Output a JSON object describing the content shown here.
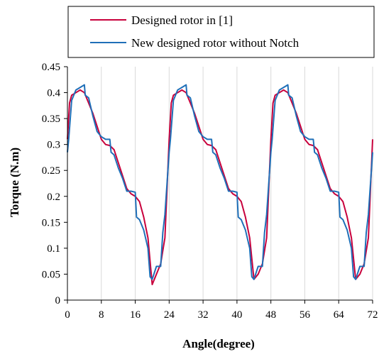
{
  "chart_data": {
    "type": "line",
    "title": "",
    "xlabel": "Angle(degree)",
    "ylabel": "Torque (N.m)",
    "xlim": [
      0,
      72
    ],
    "ylim": [
      0,
      0.45
    ],
    "x_ticks": [
      "0",
      "8",
      "16",
      "24",
      "32",
      "40",
      "48",
      "56",
      "64",
      "72"
    ],
    "y_ticks": [
      "0",
      "0.05",
      "0.1",
      "0.15",
      "0.2",
      "0.25",
      "0.3",
      "0.35",
      "0.4",
      "0.45"
    ],
    "grid": "vertical",
    "legend_position": "top",
    "series": [
      {
        "name": "Designed rotor in [1]",
        "color": "#C8003C",
        "points": [
          [
            0.0,
            0.31
          ],
          [
            0.5,
            0.38
          ],
          [
            1.0,
            0.395
          ],
          [
            2.0,
            0.4
          ],
          [
            3.0,
            0.405
          ],
          [
            4.0,
            0.4
          ],
          [
            5.0,
            0.38
          ],
          [
            6.0,
            0.36
          ],
          [
            7.0,
            0.335
          ],
          [
            8.0,
            0.31
          ],
          [
            9.0,
            0.3
          ],
          [
            10.0,
            0.298
          ],
          [
            11.0,
            0.29
          ],
          [
            12.0,
            0.265
          ],
          [
            13.0,
            0.24
          ],
          [
            14.0,
            0.215
          ],
          [
            15.0,
            0.205
          ],
          [
            16.0,
            0.2
          ],
          [
            17.0,
            0.19
          ],
          [
            18.0,
            0.16
          ],
          [
            19.0,
            0.12
          ],
          [
            20.0,
            0.03
          ],
          [
            21.0,
            0.05
          ],
          [
            22.0,
            0.07
          ],
          [
            23.0,
            0.12
          ],
          [
            24.0,
            0.31
          ],
          [
            24.5,
            0.38
          ],
          [
            25.0,
            0.395
          ],
          [
            26.0,
            0.4
          ],
          [
            27.0,
            0.405
          ],
          [
            28.0,
            0.4
          ],
          [
            29.0,
            0.38
          ],
          [
            30.0,
            0.36
          ],
          [
            31.0,
            0.335
          ],
          [
            32.0,
            0.31
          ],
          [
            33.0,
            0.3
          ],
          [
            34.0,
            0.298
          ],
          [
            35.0,
            0.29
          ],
          [
            36.0,
            0.265
          ],
          [
            37.0,
            0.24
          ],
          [
            38.0,
            0.215
          ],
          [
            39.0,
            0.205
          ],
          [
            40.0,
            0.2
          ],
          [
            41.0,
            0.19
          ],
          [
            42.0,
            0.16
          ],
          [
            43.0,
            0.12
          ],
          [
            44.0,
            0.04
          ],
          [
            45.0,
            0.05
          ],
          [
            46.0,
            0.07
          ],
          [
            47.0,
            0.12
          ],
          [
            48.0,
            0.31
          ],
          [
            48.5,
            0.38
          ],
          [
            49.0,
            0.395
          ],
          [
            50.0,
            0.4
          ],
          [
            51.0,
            0.405
          ],
          [
            52.0,
            0.4
          ],
          [
            53.0,
            0.38
          ],
          [
            54.0,
            0.36
          ],
          [
            55.0,
            0.335
          ],
          [
            56.0,
            0.31
          ],
          [
            57.0,
            0.3
          ],
          [
            58.0,
            0.298
          ],
          [
            59.0,
            0.29
          ],
          [
            60.0,
            0.265
          ],
          [
            61.0,
            0.24
          ],
          [
            62.0,
            0.215
          ],
          [
            63.0,
            0.205
          ],
          [
            64.0,
            0.2
          ],
          [
            65.0,
            0.19
          ],
          [
            66.0,
            0.16
          ],
          [
            67.0,
            0.12
          ],
          [
            68.0,
            0.04
          ],
          [
            69.0,
            0.05
          ],
          [
            70.0,
            0.07
          ],
          [
            71.0,
            0.12
          ],
          [
            72.0,
            0.31
          ]
        ]
      },
      {
        "name": "New designed rotor without Notch",
        "color": "#1F6FB8",
        "points": [
          [
            0.0,
            0.285
          ],
          [
            0.3,
            0.31
          ],
          [
            1.0,
            0.385
          ],
          [
            2.0,
            0.405
          ],
          [
            3.0,
            0.41
          ],
          [
            4.0,
            0.415
          ],
          [
            4.2,
            0.395
          ],
          [
            5.0,
            0.39
          ],
          [
            6.0,
            0.355
          ],
          [
            7.0,
            0.325
          ],
          [
            8.0,
            0.315
          ],
          [
            9.0,
            0.31
          ],
          [
            10.0,
            0.31
          ],
          [
            10.3,
            0.285
          ],
          [
            11.0,
            0.28
          ],
          [
            12.0,
            0.255
          ],
          [
            13.0,
            0.235
          ],
          [
            14.0,
            0.21
          ],
          [
            15.0,
            0.21
          ],
          [
            16.0,
            0.208
          ],
          [
            16.3,
            0.16
          ],
          [
            17.0,
            0.155
          ],
          [
            18.0,
            0.135
          ],
          [
            19.0,
            0.1
          ],
          [
            19.5,
            0.045
          ],
          [
            20.0,
            0.04
          ],
          [
            21.0,
            0.065
          ],
          [
            22.0,
            0.065
          ],
          [
            22.5,
            0.13
          ],
          [
            23.0,
            0.165
          ],
          [
            24.0,
            0.285
          ],
          [
            24.3,
            0.31
          ],
          [
            25.0,
            0.385
          ],
          [
            26.0,
            0.405
          ],
          [
            27.0,
            0.41
          ],
          [
            28.0,
            0.415
          ],
          [
            28.2,
            0.395
          ],
          [
            29.0,
            0.39
          ],
          [
            30.0,
            0.355
          ],
          [
            31.0,
            0.325
          ],
          [
            32.0,
            0.315
          ],
          [
            33.0,
            0.31
          ],
          [
            34.0,
            0.31
          ],
          [
            34.3,
            0.285
          ],
          [
            35.0,
            0.28
          ],
          [
            36.0,
            0.255
          ],
          [
            37.0,
            0.235
          ],
          [
            38.0,
            0.21
          ],
          [
            39.0,
            0.21
          ],
          [
            40.0,
            0.208
          ],
          [
            40.3,
            0.16
          ],
          [
            41.0,
            0.155
          ],
          [
            42.0,
            0.135
          ],
          [
            43.0,
            0.1
          ],
          [
            43.5,
            0.045
          ],
          [
            44.0,
            0.04
          ],
          [
            45.0,
            0.065
          ],
          [
            46.0,
            0.065
          ],
          [
            46.5,
            0.13
          ],
          [
            47.0,
            0.165
          ],
          [
            48.0,
            0.285
          ],
          [
            48.3,
            0.31
          ],
          [
            49.0,
            0.385
          ],
          [
            50.0,
            0.405
          ],
          [
            51.0,
            0.41
          ],
          [
            52.0,
            0.415
          ],
          [
            52.2,
            0.395
          ],
          [
            53.0,
            0.39
          ],
          [
            54.0,
            0.355
          ],
          [
            55.0,
            0.325
          ],
          [
            56.0,
            0.315
          ],
          [
            57.0,
            0.31
          ],
          [
            58.0,
            0.31
          ],
          [
            58.3,
            0.285
          ],
          [
            59.0,
            0.28
          ],
          [
            60.0,
            0.255
          ],
          [
            61.0,
            0.235
          ],
          [
            62.0,
            0.21
          ],
          [
            63.0,
            0.21
          ],
          [
            64.0,
            0.208
          ],
          [
            64.3,
            0.16
          ],
          [
            65.0,
            0.155
          ],
          [
            66.0,
            0.135
          ],
          [
            67.0,
            0.1
          ],
          [
            67.5,
            0.045
          ],
          [
            68.0,
            0.04
          ],
          [
            69.0,
            0.065
          ],
          [
            70.0,
            0.065
          ],
          [
            70.5,
            0.13
          ],
          [
            71.0,
            0.165
          ],
          [
            72.0,
            0.285
          ]
        ]
      }
    ]
  }
}
